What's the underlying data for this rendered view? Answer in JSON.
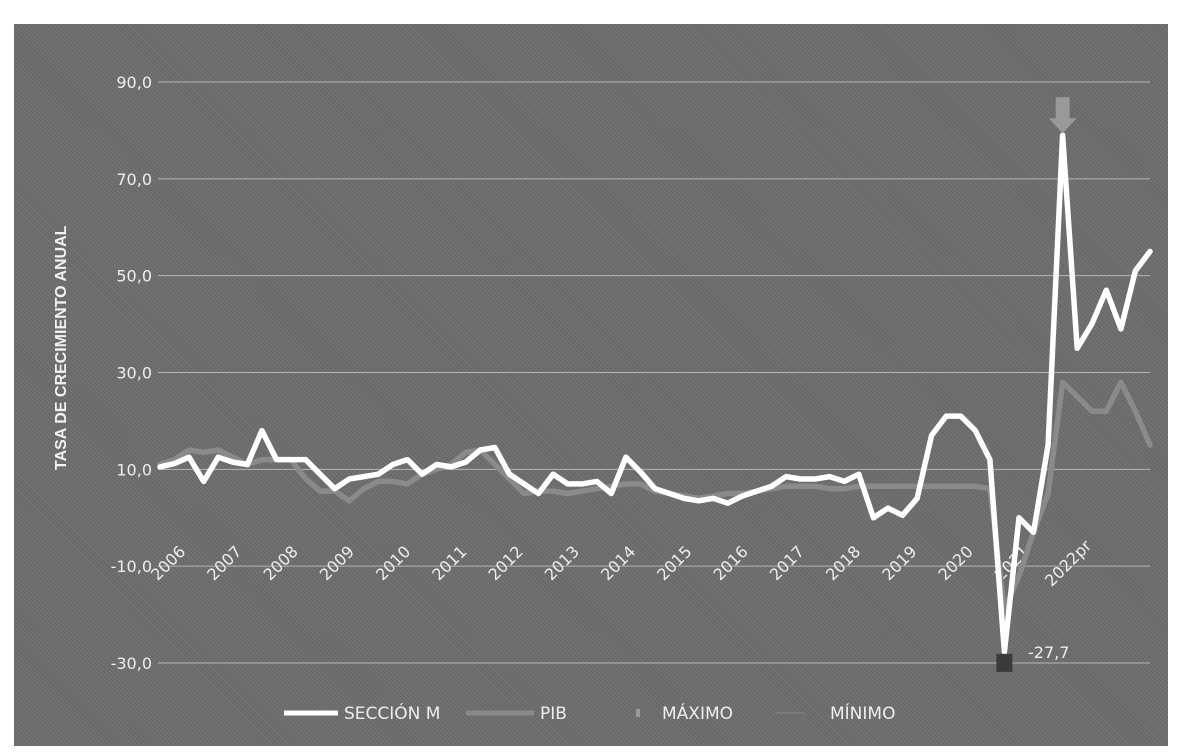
{
  "chart_data": {
    "type": "line",
    "title": "",
    "ylabel": "TASA DE CRECIMIENTO ANUAL",
    "ylim": [
      -30,
      90
    ],
    "yticks": [
      90,
      70,
      50,
      30,
      10,
      -10,
      -30
    ],
    "ytick_labels": [
      "90,0",
      "70,0",
      "50,0",
      "30,0",
      "10,0",
      "-10,0",
      "-30,0"
    ],
    "x_labels": [
      "2006",
      "2007",
      "2008",
      "2009",
      "2010",
      "2011",
      "2012",
      "2013",
      "2014",
      "2015",
      "2016",
      "2017",
      "2018",
      "2019",
      "2020",
      "2021",
      "2022pr"
    ],
    "grid": true,
    "legend": {
      "position": "bottom",
      "entries": [
        "SECCIÓN M",
        "PIB",
        "MÁXIMO",
        "MÍNIMO"
      ]
    },
    "series": [
      {
        "name": "SECCIÓN M",
        "color": "#ffffff",
        "values": [
          10.5,
          11.2,
          12.5,
          7.5,
          12.5,
          11.5,
          11.0,
          18.0,
          12.0,
          12.0,
          12.0,
          9.0,
          6.0,
          8.0,
          8.5,
          9.0,
          11.0,
          12.0,
          9.0,
          11.0,
          10.5,
          11.5,
          14.0,
          14.5,
          9.0,
          7.0,
          5.0,
          9.0,
          7.0,
          7.0,
          7.5,
          5.0,
          12.5,
          9.5,
          6.0,
          5.0,
          4.0,
          3.5,
          4.0,
          3.0,
          4.5,
          5.5,
          6.5,
          8.5,
          8.0,
          8.0,
          8.5,
          7.5,
          9.0,
          0.0,
          2.0,
          0.5,
          4.0,
          17.0,
          21.0,
          21.0,
          18.0,
          12.0,
          -27.7,
          0.0,
          -3.0,
          15.0,
          79.0,
          35.0,
          40.0,
          47.0,
          39.0,
          51.0,
          55.0
        ]
      },
      {
        "name": "PIB",
        "color": "#8a8a8a",
        "values": [
          11.0,
          12.0,
          14.0,
          13.5,
          14.0,
          12.5,
          11.0,
          12.0,
          12.0,
          12.0,
          8.0,
          5.5,
          5.5,
          3.5,
          6.0,
          7.5,
          7.5,
          7.0,
          9.0,
          10.0,
          11.0,
          13.5,
          14.0,
          11.0,
          8.0,
          5.0,
          5.5,
          5.5,
          5.0,
          5.5,
          6.0,
          6.5,
          7.0,
          7.0,
          5.5,
          5.0,
          4.5,
          4.0,
          4.5,
          5.0,
          5.0,
          5.5,
          6.0,
          6.5,
          6.5,
          6.5,
          6.0,
          6.0,
          6.5,
          6.5,
          6.5,
          6.5,
          6.5,
          6.5,
          6.5,
          6.5,
          6.5,
          6.0,
          -19.0,
          -12.0,
          -3.0,
          5.0,
          28.0,
          25.0,
          22.0,
          22.0,
          28.0,
          22.0,
          15.0
        ]
      }
    ],
    "annotations": {
      "maximo_value": 79.0,
      "minimo_label": "-27,7",
      "minimo_value": -27.7,
      "marker_color": "#999999"
    }
  }
}
